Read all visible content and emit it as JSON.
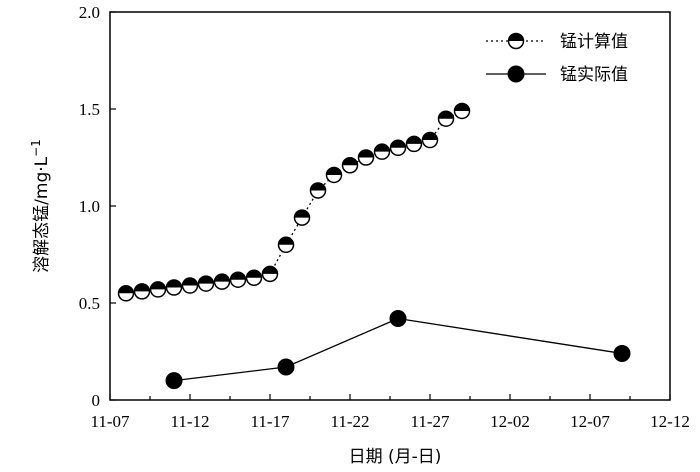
{
  "chart_data": {
    "type": "line",
    "xlabel": "日期 (月-日)",
    "ylabel": "溶解态锰/mg·L",
    "ylabel_sup": "−1",
    "x_ticks": [
      "11-07",
      "11-12",
      "11-17",
      "11-22",
      "11-27",
      "12-02",
      "12-07",
      "12-12"
    ],
    "xlim": [
      "11-07",
      "12-12"
    ],
    "y_ticks": [
      "0",
      "0.5",
      "1.0",
      "1.5",
      "2.0"
    ],
    "ylim": [
      0,
      2.0
    ],
    "grid": false,
    "legend_position": "top-right",
    "series": [
      {
        "name": "锰计算值",
        "style": "dotted",
        "marker": "half-filled-circle",
        "x": [
          "11-08",
          "11-09",
          "11-10",
          "11-11",
          "11-12",
          "11-13",
          "11-14",
          "11-15",
          "11-16",
          "11-17",
          "11-18",
          "11-19",
          "11-20",
          "11-21",
          "11-22",
          "11-23",
          "11-24",
          "11-25",
          "11-26",
          "11-27",
          "11-28",
          "11-29"
        ],
        "y": [
          0.55,
          0.56,
          0.57,
          0.58,
          0.59,
          0.6,
          0.61,
          0.62,
          0.63,
          0.65,
          0.8,
          0.94,
          1.08,
          1.16,
          1.21,
          1.25,
          1.28,
          1.3,
          1.32,
          1.34,
          1.45,
          1.49
        ]
      },
      {
        "name": "锰实际值",
        "style": "solid",
        "marker": "filled-circle",
        "x": [
          "11-11",
          "11-18",
          "11-25",
          "12-09"
        ],
        "y": [
          0.1,
          0.17,
          0.42,
          0.24
        ]
      }
    ]
  }
}
